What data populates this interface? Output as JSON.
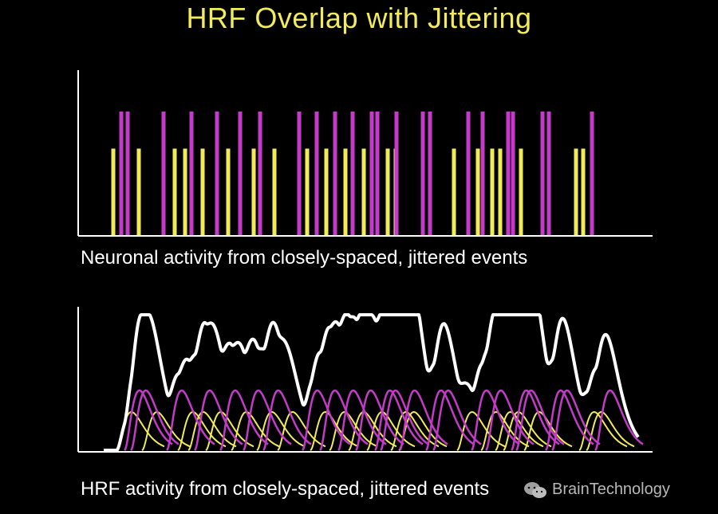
{
  "title": "HRF Overlap with Jittering",
  "panels": {
    "neuronal": {
      "caption": "Neuronal activity from closely-spaced, jittered events"
    },
    "hrf": {
      "caption": "HRF activity from closely-spaced, jittered events"
    }
  },
  "watermark": {
    "text": "BrainTechnology",
    "icon": "wechat-icon"
  },
  "colors": {
    "conditionA": "#c43ac9",
    "conditionB": "#f0eb57",
    "sum": "#ffffff",
    "axis": "#ffffff"
  },
  "chart_data": {
    "type": "event-train",
    "events": {
      "conditionA": [
        152,
        160,
        205,
        240,
        272,
        301,
        326,
        375,
        397,
        420,
        442,
        466,
        473,
        497,
        530,
        539,
        587,
        605,
        637,
        643,
        680,
        688,
        742
      ],
      "conditionB": [
        142,
        174,
        219,
        232,
        254,
        286,
        318,
        344,
        385,
        409,
        433,
        456,
        486,
        496,
        569,
        599,
        617,
        627,
        653,
        722,
        731
      ]
    },
    "heights": {
      "conditionA": 1.0,
      "conditionB": 0.7
    },
    "grid": false
  }
}
